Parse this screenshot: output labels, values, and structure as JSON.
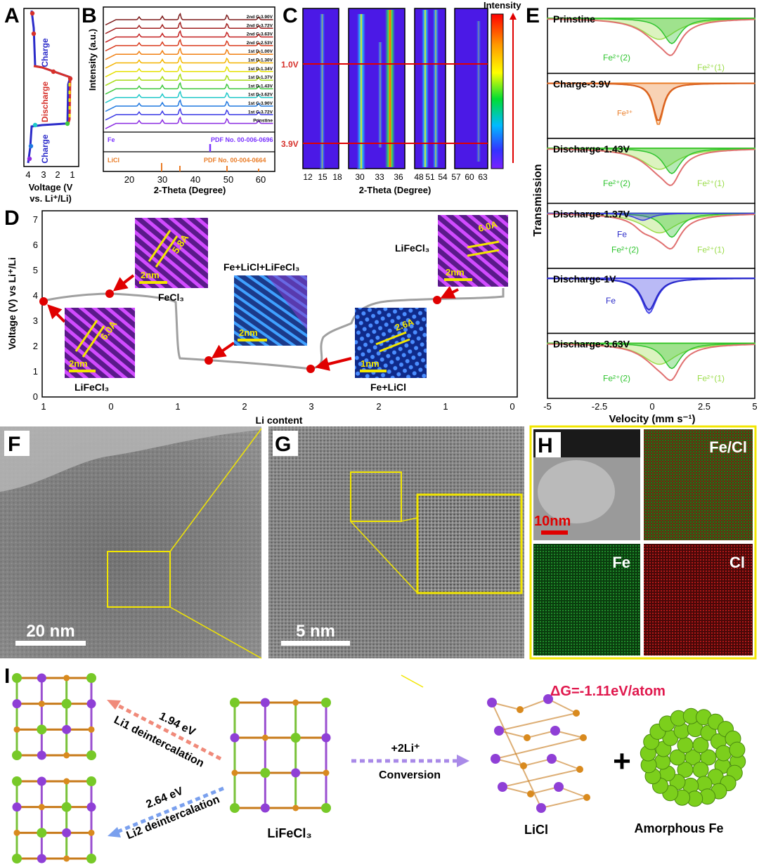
{
  "panel_letters": {
    "a": "A",
    "b": "B",
    "c": "C",
    "d": "D",
    "e": "E",
    "f": "F",
    "g": "G",
    "h": "H",
    "i": "I"
  },
  "colors": {
    "charge": "#2b2bc9",
    "discharge": "#d6302a",
    "yellow": "#f2e600",
    "heat_bg": "#4b19e6",
    "purple": "#7a33ff",
    "green": "#2ec42e",
    "lightgreen": "#9bdc4a",
    "orange": "#ea7d28",
    "red": "#e00000"
  },
  "panel_a": {
    "charge_top": "Charge",
    "discharge": "Discharge",
    "charge_bottom": "Charge",
    "xlabel_line1": "Voltage (V",
    "xlabel_line2": "vs. Li⁺/Li)",
    "x_ticks": [
      "4",
      "3",
      "2",
      "1"
    ]
  },
  "panel_b": {
    "ylabel": "Intensity (a.u.)",
    "xlabel": "2-Theta (Degree)",
    "x_ticks": [
      "20",
      "30",
      "40",
      "50",
      "60"
    ],
    "traces": [
      "2nd C-3.90V",
      "2nd C-3.72V",
      "2nd C-3.63V",
      "2nd C-2.53V",
      "1st D-1.00V",
      "1st D-1.30V",
      "1st D-1.34V",
      "1st D-1.37V",
      "1st D-1.43V",
      "1st D-3.62V",
      "1st C-3.90V",
      "1st C-3.72V",
      "Prinstine"
    ],
    "trace_colors": [
      "#7d1a1a",
      "#a11e1e",
      "#c42020",
      "#d93a1c",
      "#f07f12",
      "#f4b400",
      "#e6e000",
      "#a6dc14",
      "#3ec93e",
      "#20c9c9",
      "#1f78e0",
      "#3a3ae6",
      "#8a2be2"
    ],
    "ref_fe_label": "Fe",
    "ref_fe_pdf": "PDF No. 00-006-0696",
    "ref_licl_label": "LiCl",
    "ref_licl_pdf": "PDF No. 00-004-0664"
  },
  "panel_c": {
    "xlabel": "2-Theta (Degree)",
    "legend_title": "Intensity",
    "marker_top": "1.0V",
    "marker_bottom": "3.9V",
    "x_ticks": [
      "12",
      "15",
      "18",
      "30",
      "33",
      "36",
      "48",
      "51",
      "54",
      "57",
      "60",
      "63"
    ]
  },
  "panel_d": {
    "ylabel": "Voltage (V) vs Li⁺/Li",
    "xlabel": "Li content",
    "y_ticks": [
      "0",
      "1",
      "2",
      "3",
      "4",
      "5",
      "6",
      "7"
    ],
    "x_ticks": [
      "1",
      "0",
      "1",
      "2",
      "3",
      "2",
      "1",
      "0"
    ],
    "inset_lifecl3_left": {
      "d": "6.0A",
      "scale": "2nm",
      "label": "LiFeCl₃"
    },
    "inset_fecl3": {
      "d": "5.8A",
      "scale": "2nm",
      "label": "FeCl₃"
    },
    "inset_mix": {
      "scale": "2nm",
      "label": "Fe+LiCl+LiFeCl₃"
    },
    "inset_felicl": {
      "d": "2.6A",
      "scale": "1nm",
      "label": "Fe+LiCl"
    },
    "inset_lifecl3_right": {
      "d": "6.0A",
      "scale": "2nm",
      "label": "LiFeCl₃"
    }
  },
  "panel_e": {
    "ylabel": "Transmission",
    "xlabel": "Velocity (mm s⁻¹)",
    "x_ticks": [
      "-5",
      "-2.5",
      "0",
      "2.5",
      "5"
    ],
    "states": [
      "Prinstine",
      "Charge-3.9V",
      "Discharge-1.43V",
      "Discharge-1.37V",
      "Discharge-1V",
      "Discharge-3.63V"
    ],
    "fe2_2": "Fe²⁺(2)",
    "fe2_1": "Fe²⁺(1)",
    "fe3": "Fe³⁺",
    "fe": "Fe"
  },
  "panel_f": {
    "scale": "20 nm"
  },
  "panel_g": {
    "scale": "5 nm"
  },
  "panel_h": {
    "scale": "10nm",
    "fecl": "Fe/Cl",
    "fe": "Fe",
    "cl": "Cl"
  },
  "panel_i": {
    "li1_energy": "1.94 eV",
    "li1_text": "Li1 deintercalation",
    "li2_energy": "2.64 eV",
    "li2_text": "Li2 deintercalation",
    "conv_top": "+2Li⁺",
    "conv_bottom": "Conversion",
    "center_label": "LiFeCl₃",
    "licl_label": "LiCl",
    "plus": "+",
    "fe_label": "Amorphous Fe",
    "dg": "ΔG=-1.11eV/atom"
  }
}
